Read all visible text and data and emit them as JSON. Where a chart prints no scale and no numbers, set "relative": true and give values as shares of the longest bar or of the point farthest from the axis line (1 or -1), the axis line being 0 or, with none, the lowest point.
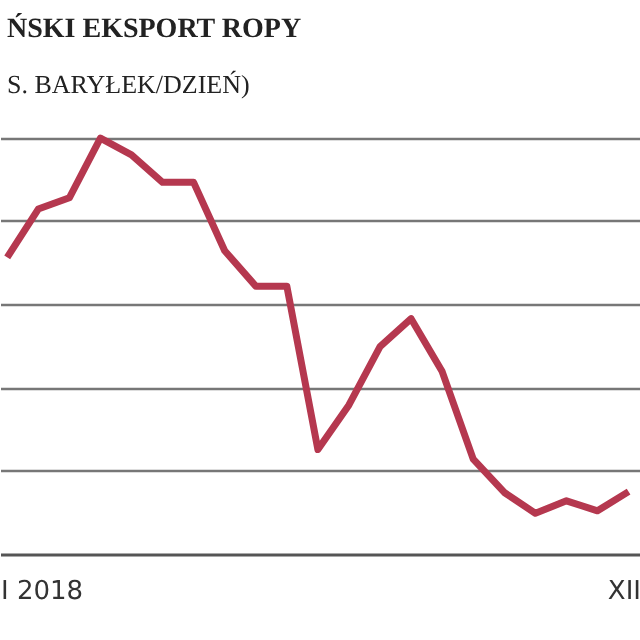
{
  "chart_data": {
    "type": "line",
    "title": "ŃSKI EKSPORT ROPY",
    "subtitle": "S. BARYŁEK/DZIEŃ)",
    "relative": true,
    "grid": "y",
    "categories": [
      null,
      "I 2018",
      null,
      null,
      null,
      null,
      null,
      null,
      null,
      null,
      null,
      null,
      null,
      null,
      null,
      null,
      null,
      null,
      null,
      null,
      "XII"
    ],
    "series": [
      {
        "color": "#b5384f",
        "values": [
          0.714,
          0.83,
          0.857,
          1.0,
          0.96,
          0.894,
          0.894,
          0.73,
          0.645,
          0.645,
          0.253,
          0.36,
          0.5,
          0.567,
          0.44,
          0.23,
          0.15,
          0.1,
          0.13,
          0.106,
          0.152
        ]
      }
    ]
  }
}
